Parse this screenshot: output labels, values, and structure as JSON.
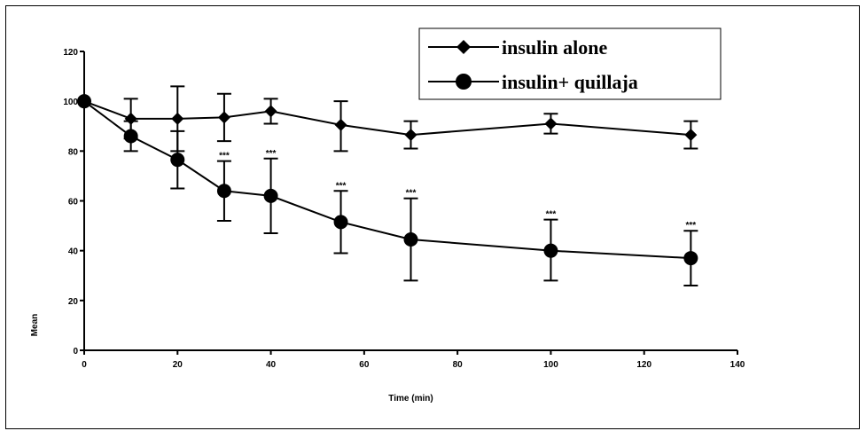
{
  "chart_data": {
    "type": "line",
    "xlabel": "Time (min)",
    "ylabel": "Mean",
    "xlim": [
      0,
      140
    ],
    "ylim": [
      0,
      120
    ],
    "xticks": [
      0,
      20,
      40,
      60,
      80,
      100,
      120,
      140
    ],
    "yticks": [
      0,
      20,
      40,
      60,
      80,
      100,
      120
    ],
    "grid": false,
    "legend_position": "top-right",
    "series": [
      {
        "name": "insulin alone",
        "marker": "diamond",
        "x": [
          0,
          10,
          20,
          30,
          40,
          55,
          70,
          100,
          130
        ],
        "y": [
          100,
          93,
          93,
          93.5,
          96,
          90.5,
          86.5,
          91,
          86.5
        ],
        "err_low": [
          100,
          85,
          80,
          84,
          91,
          80,
          81,
          87,
          81
        ],
        "err_high": [
          100,
          101,
          106,
          103,
          101,
          100,
          92,
          95,
          92
        ]
      },
      {
        "name": "insulin+ quillaja",
        "marker": "circle",
        "x": [
          0,
          10,
          20,
          30,
          40,
          55,
          70,
          100,
          130
        ],
        "y": [
          100,
          86,
          76.5,
          64,
          62,
          51.5,
          44.5,
          40,
          37
        ],
        "err_low": [
          100,
          80,
          65,
          52,
          47,
          39,
          28,
          28,
          26
        ],
        "err_high": [
          100,
          92,
          88,
          76,
          77,
          64,
          61,
          52.5,
          48
        ],
        "annotations": [
          "",
          "",
          "",
          "***",
          "***",
          "***",
          "***",
          "***",
          "***"
        ]
      }
    ]
  }
}
